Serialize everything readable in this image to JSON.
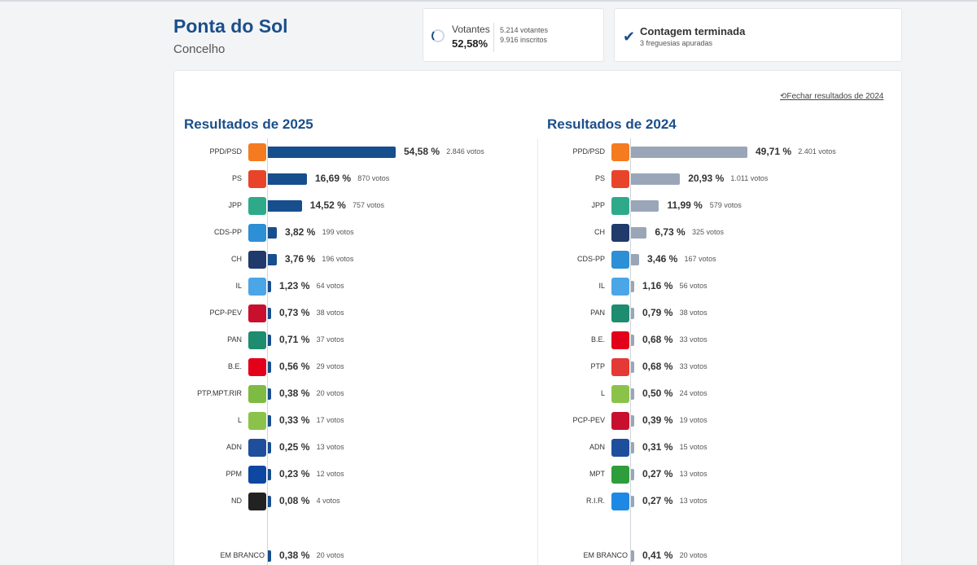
{
  "header": {
    "title": "Ponta do Sol",
    "subtitle": "Concelho"
  },
  "voters": {
    "label": "Votantes",
    "percent": "52,58%",
    "votantes": "5.214 votantes",
    "inscritos": "9.916 inscritos"
  },
  "count": {
    "title": "Contagem terminada",
    "subtitle": "3 freguesias apuradas"
  },
  "close_link": "Fechar resultados de 2024",
  "results_2025": {
    "title": "Resultados de 2025",
    "rows": [
      {
        "party": "PPD/PSD",
        "pct": 54.58,
        "pct_label": "54,58 %",
        "votes": "2.846 votos",
        "logo": "psd-arrow-icon",
        "color": "#f47b20"
      },
      {
        "party": "PS",
        "pct": 16.69,
        "pct_label": "16,69 %",
        "votes": "870 votos",
        "logo": "ps-fist-icon",
        "color": "#e8442a"
      },
      {
        "party": "JPP",
        "pct": 14.52,
        "pct_label": "14,52 %",
        "votes": "757 votos",
        "logo": "jpp-icon",
        "color": "#2eaa8b"
      },
      {
        "party": "CDS-PP",
        "pct": 3.82,
        "pct_label": "3,82 %",
        "votes": "199 votos",
        "logo": "cds-icon",
        "color": "#2d8fd5"
      },
      {
        "party": "CH",
        "pct": 3.76,
        "pct_label": "3,76 %",
        "votes": "196 votos",
        "logo": "chega-icon",
        "color": "#1f3a6b"
      },
      {
        "party": "IL",
        "pct": 1.23,
        "pct_label": "1,23 %",
        "votes": "64 votos",
        "logo": "il-icon",
        "color": "#4aa6e6"
      },
      {
        "party": "PCP-PEV",
        "pct": 0.73,
        "pct_label": "0,73 %",
        "votes": "38 votos",
        "logo": "pcp-hammer-icon",
        "color": "#c8102e"
      },
      {
        "party": "PAN",
        "pct": 0.71,
        "pct_label": "0,71 %",
        "votes": "37 votos",
        "logo": "pan-tree-icon",
        "color": "#1e8c6e"
      },
      {
        "party": "B.E.",
        "pct": 0.56,
        "pct_label": "0,56 %",
        "votes": "29 votos",
        "logo": "be-star-icon",
        "color": "#e2001a"
      },
      {
        "party": "PTP.MPT.RIR",
        "pct": 0.38,
        "pct_label": "0,38 %",
        "votes": "20 votos",
        "logo": "ptp-mpt-rir-icon",
        "color": "#7dbb42"
      },
      {
        "party": "L",
        "pct": 0.33,
        "pct_label": "0,33 %",
        "votes": "17 votos",
        "logo": "livre-flower-icon",
        "color": "#8bc34a"
      },
      {
        "party": "ADN",
        "pct": 0.25,
        "pct_label": "0,25 %",
        "votes": "13 votos",
        "logo": "adn-icon",
        "color": "#1f4e9c"
      },
      {
        "party": "PPM",
        "pct": 0.23,
        "pct_label": "0,23 %",
        "votes": "12 votos",
        "logo": "ppm-icon",
        "color": "#0d47a1"
      },
      {
        "party": "ND",
        "pct": 0.08,
        "pct_label": "0,08 %",
        "votes": "4 votos",
        "logo": "nova-direita-icon",
        "color": "#222222"
      },
      {
        "party": "EM BRANCO",
        "pct": 0.38,
        "pct_label": "0,38 %",
        "votes": "20 votos",
        "logo": "",
        "color": ""
      }
    ]
  },
  "results_2024": {
    "title": "Resultados de 2024",
    "rows": [
      {
        "party": "PPD/PSD",
        "pct": 49.71,
        "pct_label": "49,71 %",
        "votes": "2.401 votos",
        "logo": "psd-arrow-icon",
        "color": "#f47b20"
      },
      {
        "party": "PS",
        "pct": 20.93,
        "pct_label": "20,93 %",
        "votes": "1.011 votos",
        "logo": "ps-fist-icon",
        "color": "#e8442a"
      },
      {
        "party": "JPP",
        "pct": 11.99,
        "pct_label": "11,99 %",
        "votes": "579 votos",
        "logo": "jpp-icon",
        "color": "#2eaa8b"
      },
      {
        "party": "CH",
        "pct": 6.73,
        "pct_label": "6,73 %",
        "votes": "325 votos",
        "logo": "chega-icon",
        "color": "#1f3a6b"
      },
      {
        "party": "CDS-PP",
        "pct": 3.46,
        "pct_label": "3,46 %",
        "votes": "167 votos",
        "logo": "cds-icon",
        "color": "#2d8fd5"
      },
      {
        "party": "IL",
        "pct": 1.16,
        "pct_label": "1,16 %",
        "votes": "56 votos",
        "logo": "il-icon",
        "color": "#4aa6e6"
      },
      {
        "party": "PAN",
        "pct": 0.79,
        "pct_label": "0,79 %",
        "votes": "38 votos",
        "logo": "pan-tree-icon",
        "color": "#1e8c6e"
      },
      {
        "party": "B.E.",
        "pct": 0.68,
        "pct_label": "0,68 %",
        "votes": "33 votos",
        "logo": "be-star-icon",
        "color": "#e2001a"
      },
      {
        "party": "PTP",
        "pct": 0.68,
        "pct_label": "0,68 %",
        "votes": "33 votos",
        "logo": "ptp-icon",
        "color": "#e53935"
      },
      {
        "party": "L",
        "pct": 0.5,
        "pct_label": "0,50 %",
        "votes": "24 votos",
        "logo": "livre-flower-icon",
        "color": "#8bc34a"
      },
      {
        "party": "PCP-PEV",
        "pct": 0.39,
        "pct_label": "0,39 %",
        "votes": "19 votos",
        "logo": "pcp-hammer-icon",
        "color": "#c8102e"
      },
      {
        "party": "ADN",
        "pct": 0.31,
        "pct_label": "0,31 %",
        "votes": "15 votos",
        "logo": "adn-icon",
        "color": "#1f4e9c"
      },
      {
        "party": "MPT",
        "pct": 0.27,
        "pct_label": "0,27 %",
        "votes": "13 votos",
        "logo": "mpt-clover-icon",
        "color": "#2e9d3b"
      },
      {
        "party": "R.I.R.",
        "pct": 0.27,
        "pct_label": "0,27 %",
        "votes": "13 votos",
        "logo": "rir-icon",
        "color": "#1e88e5"
      },
      {
        "party": "EM BRANCO",
        "pct": 0.41,
        "pct_label": "0,41 %",
        "votes": "20 votos",
        "logo": "",
        "color": ""
      }
    ]
  },
  "chart_data": [
    {
      "type": "bar",
      "title": "Resultados de 2025",
      "categories": [
        "PPD/PSD",
        "PS",
        "JPP",
        "CDS-PP",
        "CH",
        "IL",
        "PCP-PEV",
        "PAN",
        "B.E.",
        "PTP.MPT.RIR",
        "L",
        "ADN",
        "PPM",
        "ND",
        "EM BRANCO"
      ],
      "values": [
        54.58,
        16.69,
        14.52,
        3.82,
        3.76,
        1.23,
        0.73,
        0.71,
        0.56,
        0.38,
        0.33,
        0.25,
        0.23,
        0.08,
        0.38
      ],
      "votes": [
        2846,
        870,
        757,
        199,
        196,
        64,
        38,
        37,
        29,
        20,
        17,
        13,
        12,
        4,
        20
      ],
      "orientation": "horizontal",
      "xlim": [
        0,
        100
      ]
    },
    {
      "type": "bar",
      "title": "Resultados de 2024",
      "categories": [
        "PPD/PSD",
        "PS",
        "JPP",
        "CH",
        "CDS-PP",
        "IL",
        "PAN",
        "B.E.",
        "PTP",
        "L",
        "PCP-PEV",
        "ADN",
        "MPT",
        "R.I.R.",
        "EM BRANCO"
      ],
      "values": [
        49.71,
        20.93,
        11.99,
        6.73,
        3.46,
        1.16,
        0.79,
        0.68,
        0.68,
        0.5,
        0.39,
        0.31,
        0.27,
        0.27,
        0.41
      ],
      "votes": [
        2401,
        1011,
        579,
        325,
        167,
        56,
        38,
        33,
        33,
        24,
        19,
        15,
        13,
        13,
        20
      ],
      "orientation": "horizontal",
      "xlim": [
        0,
        100
      ]
    }
  ]
}
